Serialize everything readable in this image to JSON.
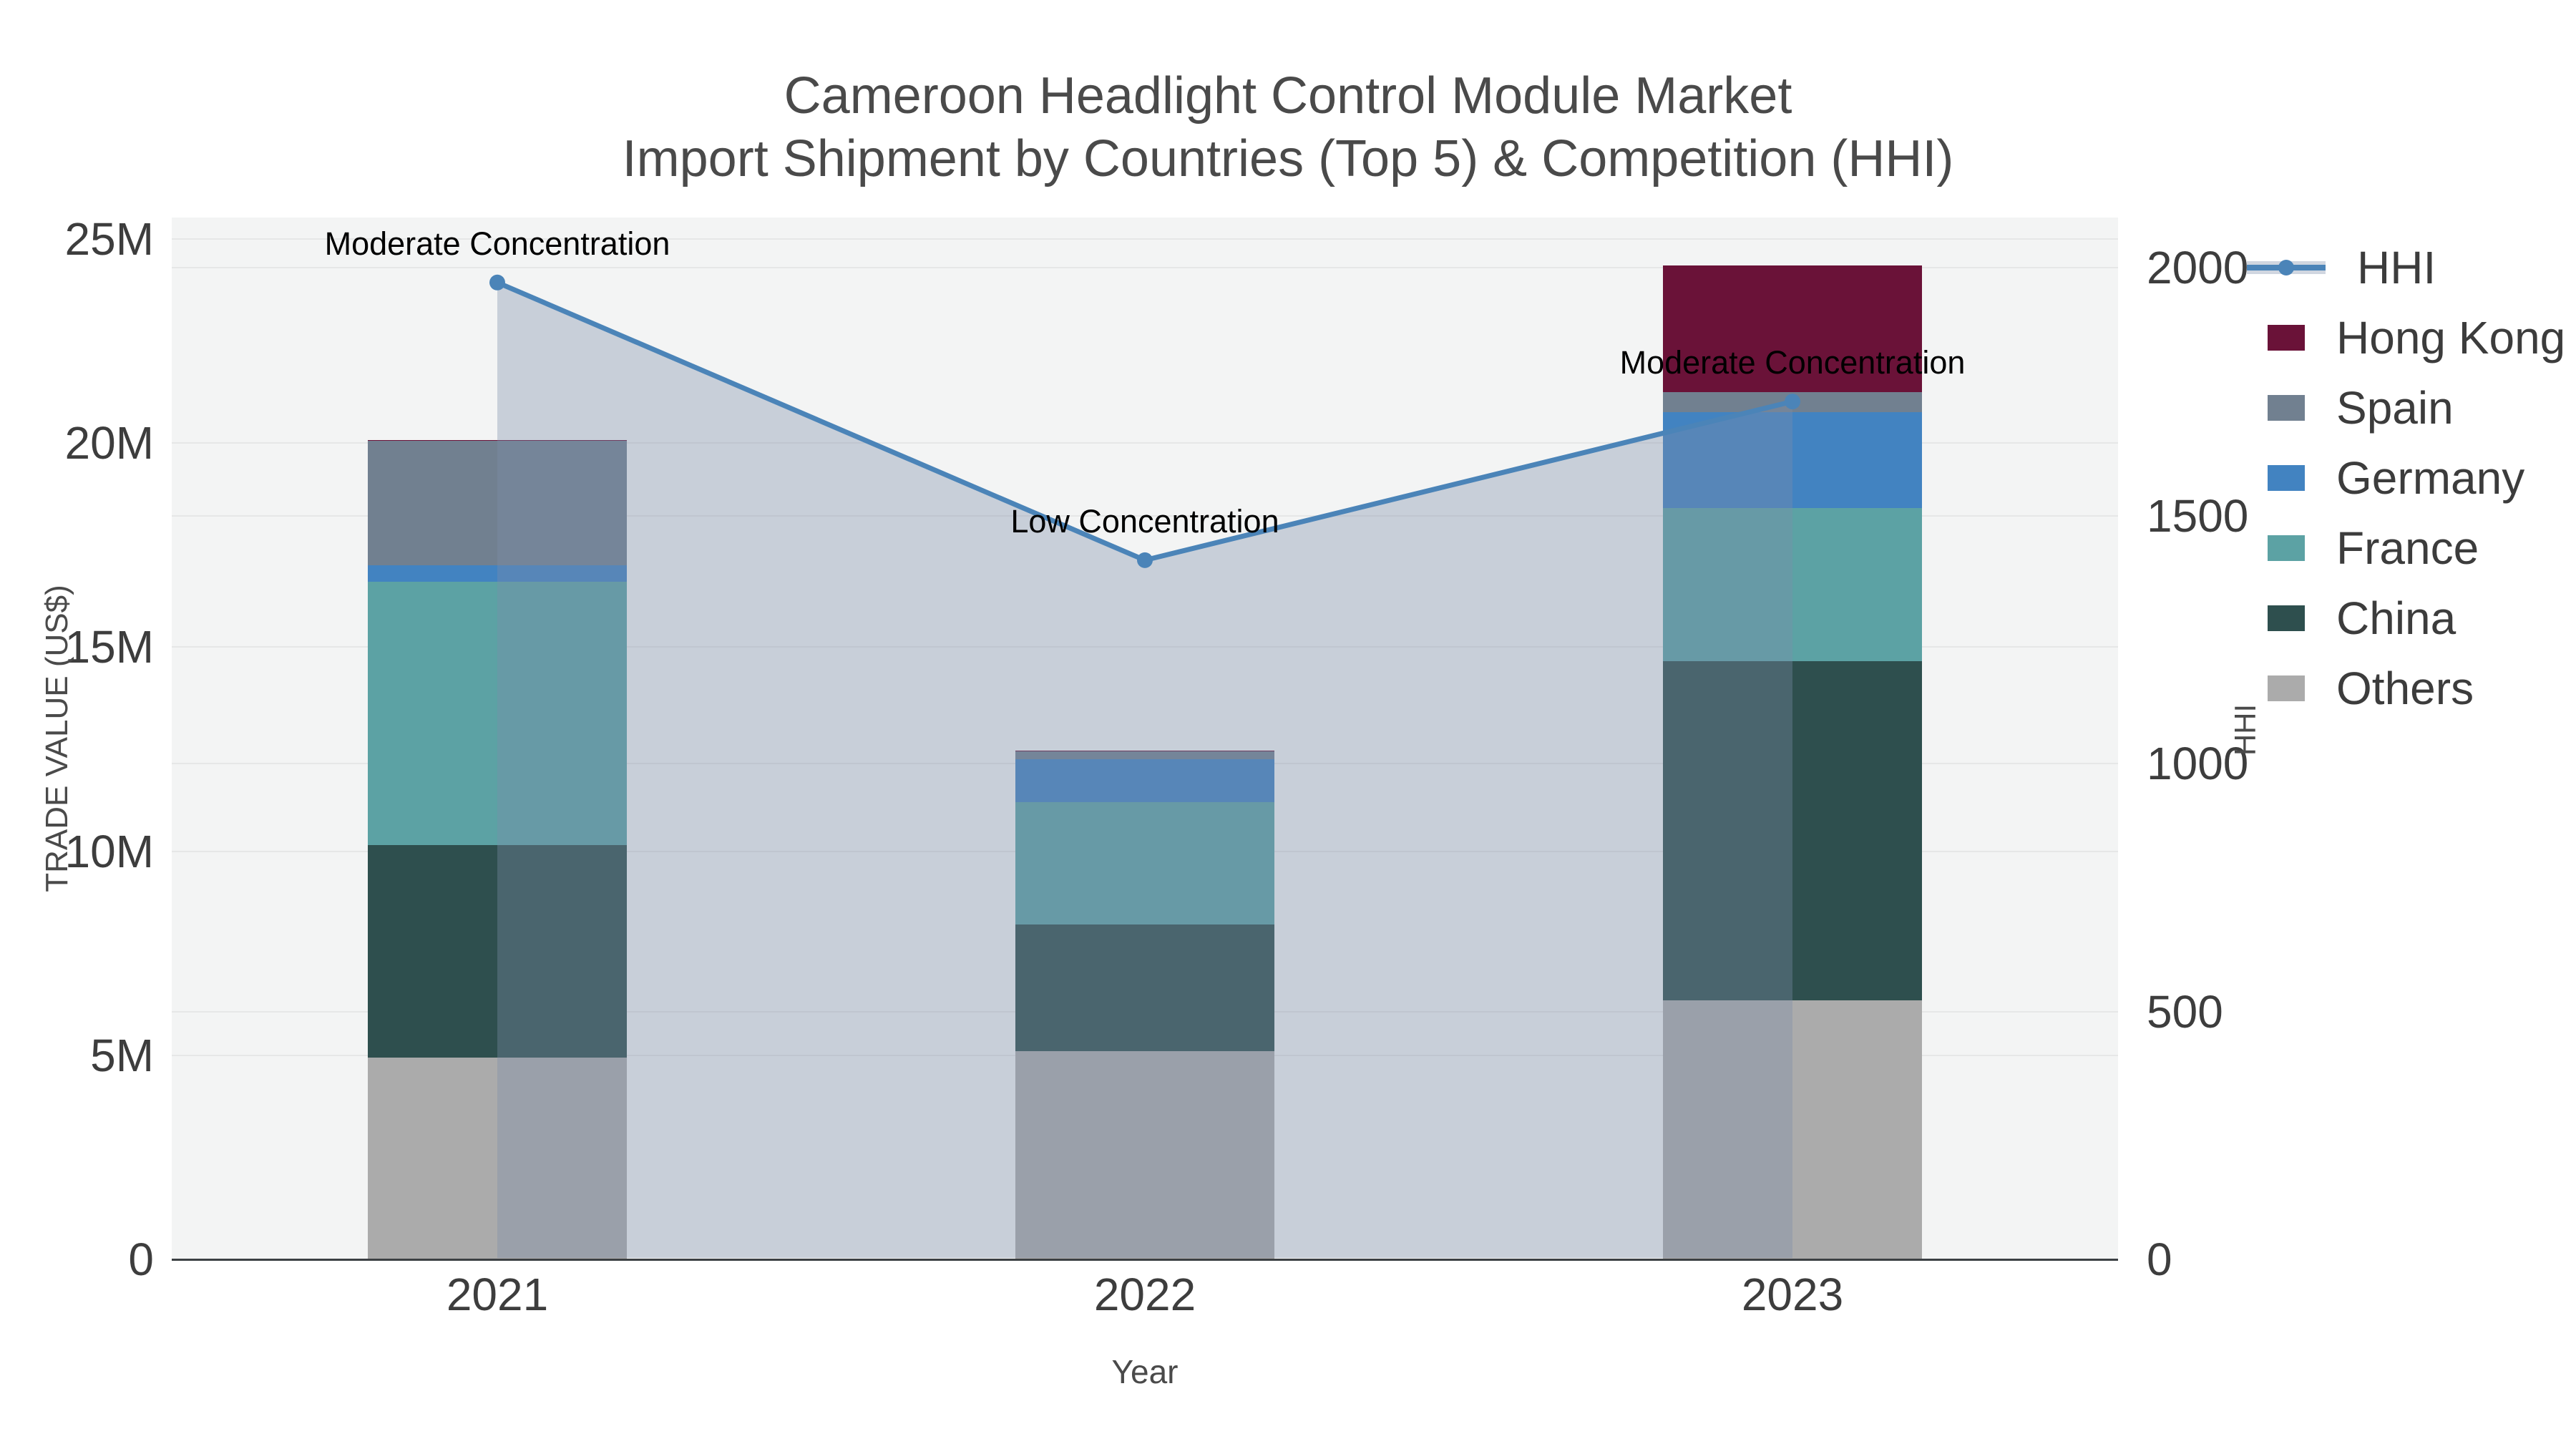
{
  "title": {
    "line1": "Cameroon Headlight Control Module Market",
    "line2": "Import Shipment by Countries (Top 5) & Competition (HHI)"
  },
  "axes": {
    "x": {
      "title": "Year",
      "categories": [
        "2021",
        "2022",
        "2023"
      ]
    },
    "y_left": {
      "title": "TRADE VALUE (US$)",
      "tick_labels": [
        "0",
        "5M",
        "10M",
        "15M",
        "20M",
        "25M"
      ],
      "tick_values": [
        0,
        5,
        10,
        15,
        20,
        25
      ],
      "range": [
        0,
        25
      ],
      "unit": "millions US$"
    },
    "y_right": {
      "title": "HHI",
      "tick_labels": [
        "0",
        "500",
        "1000",
        "1500",
        "2000"
      ],
      "tick_values": [
        0,
        500,
        1000,
        1500,
        2000
      ],
      "range": [
        0,
        2000
      ]
    }
  },
  "chart_data": {
    "type": "bar",
    "subtype": "stacked bars with HHI line + area fill on secondary axis",
    "title": "Cameroon Headlight Control Module Market — Import Shipment by Countries (Top 5) & Competition (HHI)",
    "xlabel": "Year",
    "ylabel": "TRADE VALUE (US$)",
    "ylabel_right": "HHI",
    "categories": [
      "2021",
      "2022",
      "2023"
    ],
    "value_unit": "millions US$",
    "stack_order_bottom_to_top": [
      "Others",
      "China",
      "France",
      "Germany",
      "Spain",
      "Hong Kong"
    ],
    "series": [
      {
        "name": "Others",
        "values": [
          4.95,
          5.1,
          6.35
        ]
      },
      {
        "name": "China",
        "values": [
          5.2,
          3.1,
          8.3
        ]
      },
      {
        "name": "France",
        "values": [
          6.45,
          3.0,
          3.75
        ]
      },
      {
        "name": "Germany",
        "values": [
          0.4,
          1.05,
          2.35
        ]
      },
      {
        "name": "Spain",
        "values": [
          3.05,
          0.2,
          0.5
        ]
      },
      {
        "name": "Hong Kong",
        "values": [
          0.03,
          0.02,
          3.1
        ]
      }
    ],
    "line_series": {
      "name": "HHI",
      "axis": "right",
      "values": [
        1970,
        1410,
        1730
      ],
      "area_fill": true
    },
    "annotations": [
      {
        "text": "Moderate Concentration",
        "x": "2021",
        "hhi": 1970
      },
      {
        "text": "Low Concentration",
        "x": "2022",
        "hhi": 1410
      },
      {
        "text": "Moderate Concentration",
        "x": "2023",
        "hhi": 1730
      }
    ],
    "ylim_left": [
      0,
      25
    ],
    "ylim_right": [
      0,
      2000
    ],
    "grid": true,
    "legend_position": "right"
  },
  "legend": {
    "items": [
      {
        "label": "HHI",
        "type": "line"
      },
      {
        "label": "Hong Kong",
        "type": "box"
      },
      {
        "label": "Spain",
        "type": "box"
      },
      {
        "label": "Germany",
        "type": "box"
      },
      {
        "label": "France",
        "type": "box"
      },
      {
        "label": "China",
        "type": "box"
      },
      {
        "label": "Others",
        "type": "box"
      }
    ]
  },
  "colors": {
    "HHI": "#4B84B8",
    "Hong Kong": "#6A1238",
    "Spain": "#718090",
    "Germany": "#4283C1",
    "France": "#5CA2A4",
    "China": "#2E4F4E",
    "Others": "#ABABAB",
    "area_fill": "rgba(125,140,170,0.36)",
    "hhi_band": "#D0D6E0",
    "plot_bg": "#F3F4F4",
    "grid": "#E6E7E7",
    "axis_line": "#3C4043",
    "title_text": "#4A4A4A",
    "tick_text": "#3D3D3D",
    "annotation_text": "#000000"
  }
}
